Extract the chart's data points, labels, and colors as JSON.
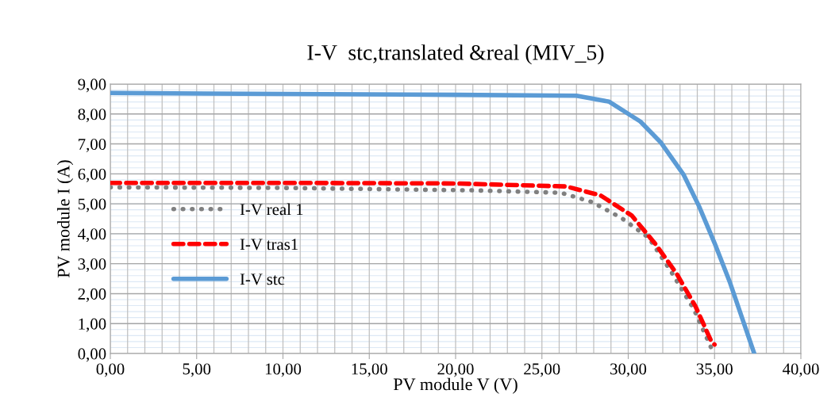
{
  "chart_data": {
    "type": "line",
    "title": "I-V  stc,translated &real (MIV_5)",
    "xlabel": "PV module V (V)",
    "ylabel": "PV module I (A)",
    "xlim": [
      0,
      40
    ],
    "ylim": [
      0,
      9
    ],
    "xticks": [
      {
        "value": 0,
        "label": "0,00"
      },
      {
        "value": 5,
        "label": "5,00"
      },
      {
        "value": 10,
        "label": "10,00"
      },
      {
        "value": 15,
        "label": "15,00"
      },
      {
        "value": 20,
        "label": "20,00"
      },
      {
        "value": 25,
        "label": "25,00"
      },
      {
        "value": 30,
        "label": "30,00"
      },
      {
        "value": 35,
        "label": "35,00"
      },
      {
        "value": 40,
        "label": "40,00"
      }
    ],
    "yticks": [
      {
        "value": 0,
        "label": "0,00"
      },
      {
        "value": 1,
        "label": "1,00"
      },
      {
        "value": 2,
        "label": "2,00"
      },
      {
        "value": 3,
        "label": "3,00"
      },
      {
        "value": 4,
        "label": "4,00"
      },
      {
        "value": 5,
        "label": "5,00"
      },
      {
        "value": 6,
        "label": "6,00"
      },
      {
        "value": 7,
        "label": "7,00"
      },
      {
        "value": 8,
        "label": "8,00"
      },
      {
        "value": 9,
        "label": "9,00"
      }
    ],
    "grid": true,
    "legend": "left",
    "marker": "none",
    "series": [
      {
        "name": "I-V real 1",
        "color": "#808080",
        "line_style": "dotted",
        "x": [
          0,
          10,
          21,
          26.1,
          27.9,
          29.6,
          31.2,
          32.5,
          33.8,
          34.8,
          34.9
        ],
        "values": [
          5.55,
          5.53,
          5.45,
          5.37,
          5.06,
          4.53,
          3.86,
          2.72,
          1.48,
          0.2,
          0.15
        ]
      },
      {
        "name": "I-V tras1",
        "color": "#ff0000",
        "line_style": "dashed",
        "x": [
          0,
          10,
          20,
          26.4,
          28.4,
          30.2,
          31.6,
          32.8,
          33.9,
          34.8,
          35.0
        ],
        "values": [
          5.7,
          5.7,
          5.68,
          5.58,
          5.28,
          4.61,
          3.64,
          2.67,
          1.57,
          0.42,
          0.3
        ]
      },
      {
        "name": "I-V stc",
        "color": "#5b9bd5",
        "line_style": "solid",
        "x": [
          0,
          10,
          20,
          27.0,
          28.9,
          30.7,
          31.9,
          33.2,
          34.1,
          35.0,
          35.9,
          37.3
        ],
        "values": [
          8.7,
          8.67,
          8.64,
          8.61,
          8.41,
          7.75,
          7.04,
          5.98,
          4.92,
          3.69,
          2.36,
          0
        ]
      }
    ]
  }
}
